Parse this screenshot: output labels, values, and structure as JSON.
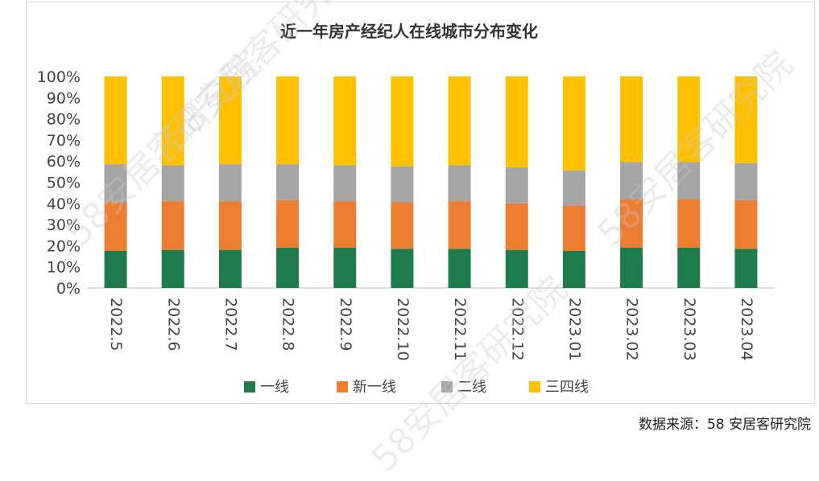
{
  "chart_data": {
    "type": "bar",
    "stacked": true,
    "title": "近一年房产经纪人在线城市分布变化",
    "categories": [
      "2022.5",
      "2022.6",
      "2022.7",
      "2022.8",
      "2022.9",
      "2022.10",
      "2022.11",
      "2022.12",
      "2023.01",
      "2023.02",
      "2023.03",
      "2023.04"
    ],
    "yticks": [
      "0%",
      "10%",
      "20%",
      "30%",
      "40%",
      "50%",
      "60%",
      "70%",
      "80%",
      "90%",
      "100%"
    ],
    "ylim": [
      0,
      100
    ],
    "series": [
      {
        "name": "一线",
        "color": "#1e7b4b",
        "values": [
          17.5,
          18,
          18,
          19,
          19,
          18.5,
          18.5,
          18,
          17.5,
          19,
          19,
          18.5
        ]
      },
      {
        "name": "新一线",
        "color": "#ed7d31",
        "values": [
          23,
          23,
          23,
          22.5,
          22,
          22,
          22.5,
          22,
          21.5,
          23,
          23,
          23
        ]
      },
      {
        "name": "二线",
        "color": "#a5a5a5",
        "values": [
          18,
          17,
          17.5,
          17,
          17,
          17,
          17,
          17,
          16.5,
          17.5,
          17.5,
          17.5
        ]
      },
      {
        "name": "三四线",
        "color": "#ffc000",
        "values": [
          41.5,
          42,
          41.5,
          41.5,
          42,
          42.5,
          42,
          43,
          44.5,
          40.5,
          40.5,
          41
        ]
      }
    ],
    "legend_position": "bottom"
  },
  "source_text": "数据来源：58 安居客研究院",
  "watermark_text": "58安居客研究院"
}
